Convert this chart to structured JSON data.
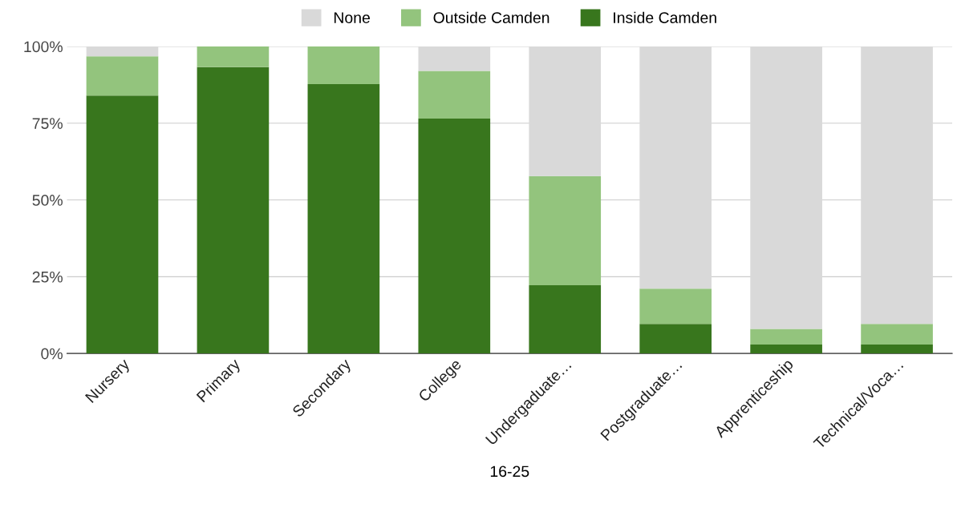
{
  "chart_data": {
    "type": "bar",
    "stacked": true,
    "xlabel": "16-25",
    "categories": [
      "Nursery",
      "Primary",
      "Secondary",
      "College",
      "Undergaduate…",
      "Postgraduate…",
      "Apprenticeship",
      "Technical/Voca…"
    ],
    "series": [
      {
        "name": "Inside Camden",
        "color": "#38761d",
        "values": [
          84,
          93.3,
          87.7,
          76.5,
          22.2,
          9.6,
          2.9,
          2.9
        ]
      },
      {
        "name": "Outside Camden",
        "color": "#93c47d",
        "values": [
          12.8,
          6.7,
          12.3,
          15.5,
          35.6,
          11.5,
          5.1,
          6.7
        ]
      },
      {
        "name": "None",
        "color": "#d9d9d9",
        "values": [
          3.2,
          0,
          0,
          8,
          42.2,
          78.9,
          92,
          90.4
        ]
      }
    ],
    "ylim": [
      0,
      100
    ],
    "yticks": [
      {
        "value": 0,
        "label": "0%"
      },
      {
        "value": 25,
        "label": "25%"
      },
      {
        "value": 50,
        "label": "50%"
      },
      {
        "value": 75,
        "label": "75%"
      },
      {
        "value": 100,
        "label": "100%"
      }
    ],
    "grid": "y",
    "legend": "top"
  }
}
